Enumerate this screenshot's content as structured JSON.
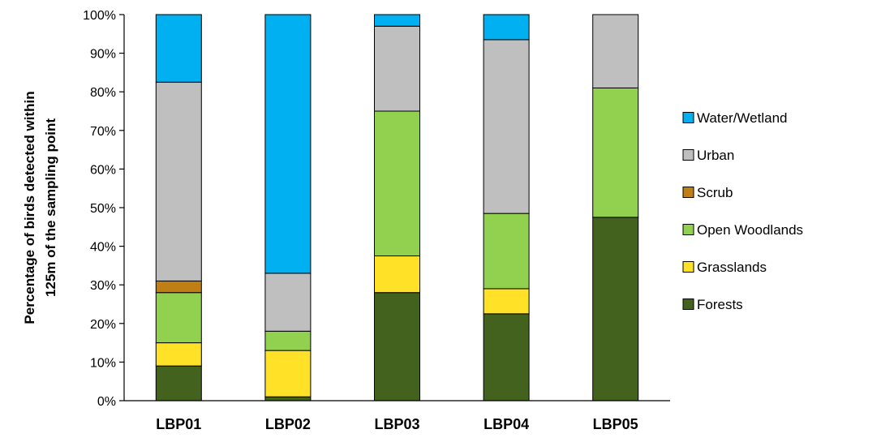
{
  "chart_data": {
    "type": "bar",
    "stacked": true,
    "percent_stacked": true,
    "categories": [
      "LBP01",
      "LBP02",
      "LBP03",
      "LBP04",
      "LBP05"
    ],
    "series": [
      {
        "name": "Forests",
        "color": "#43621E",
        "values": [
          9,
          1,
          28,
          22.5,
          47.5
        ]
      },
      {
        "name": "Grasslands",
        "color": "#FFE228",
        "values": [
          6,
          12,
          9.5,
          6.5,
          0
        ]
      },
      {
        "name": "Open Woodlands",
        "color": "#92D050",
        "values": [
          13,
          5,
          37.5,
          19.5,
          33.5
        ]
      },
      {
        "name": "Scrub",
        "color": "#BF7F14",
        "values": [
          3,
          0,
          0,
          0,
          0
        ]
      },
      {
        "name": "Urban",
        "color": "#BFBFBF",
        "values": [
          51.5,
          15,
          22,
          45,
          19
        ]
      },
      {
        "name": "Water/Wetland",
        "color": "#00B0F0",
        "values": [
          17.5,
          67,
          3,
          6.5,
          0
        ]
      }
    ],
    "ylabel_line1": "Percentage of birds detected within",
    "ylabel_line2": "125m of the sampling point",
    "ylim": [
      0,
      100
    ],
    "y_ticks": [
      0,
      10,
      20,
      30,
      40,
      50,
      60,
      70,
      80,
      90,
      100
    ],
    "y_tick_suffix": "%",
    "grid": false,
    "legend_position": "right",
    "legend_order": [
      "Water/Wetland",
      "Urban",
      "Scrub",
      "Open Woodlands",
      "Grasslands",
      "Forests"
    ]
  }
}
